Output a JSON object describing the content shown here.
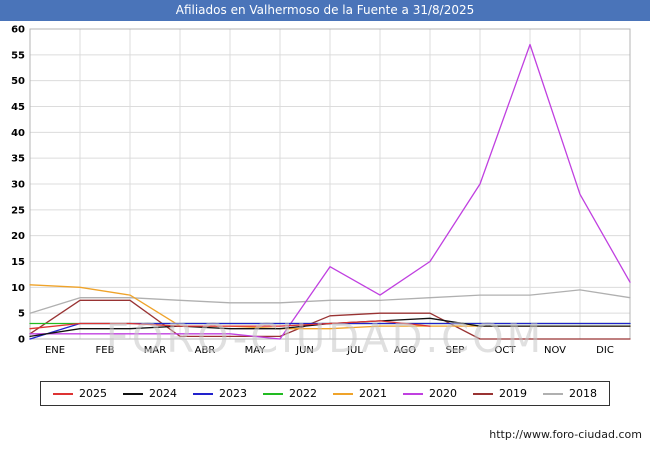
{
  "chart_data": {
    "type": "line",
    "title": "Afiliados en Valhermoso de la Fuente a 31/8/2025",
    "categories": [
      "ENE",
      "FEB",
      "MAR",
      "ABR",
      "MAY",
      "JUN",
      "JUL",
      "AGO",
      "SEP",
      "OCT",
      "NOV",
      "DIC"
    ],
    "ylim": [
      0,
      60
    ],
    "ytick_step": 5,
    "points": 13,
    "grid": true,
    "legend_position": "bottom",
    "series": [
      {
        "name": "2025",
        "color": "#dd3333",
        "values": [
          2,
          3,
          3,
          2.5,
          2.5,
          2.5,
          3,
          3.5,
          2.5,
          null,
          null,
          null,
          null
        ]
      },
      {
        "name": "2024",
        "color": "#111111",
        "values": [
          0.5,
          2,
          2,
          2.5,
          2,
          2,
          3,
          3.5,
          4,
          2.5,
          2.5,
          2.5,
          2.5
        ]
      },
      {
        "name": "2023",
        "color": "#2222cc",
        "values": [
          0,
          3,
          3,
          3,
          3,
          3,
          3,
          3,
          3,
          3,
          3,
          3,
          3
        ]
      },
      {
        "name": "2022",
        "color": "#22bb22",
        "values": [
          3,
          3,
          3,
          3,
          3,
          3,
          3,
          3,
          3,
          3,
          3,
          3,
          3
        ]
      },
      {
        "name": "2021",
        "color": "#efa32a",
        "values": [
          10.5,
          10,
          8.5,
          2.5,
          2.5,
          2,
          2,
          2.5,
          2.5,
          2.5,
          2.5,
          2.5,
          2.5
        ]
      },
      {
        "name": "2020",
        "color": "#c040e0",
        "values": [
          1,
          1,
          1,
          1,
          1,
          0,
          14,
          8.5,
          15,
          30,
          57,
          28,
          11
        ]
      },
      {
        "name": "2019",
        "color": "#993333",
        "values": [
          1,
          7.5,
          7.5,
          0.5,
          0.5,
          0.5,
          4.5,
          5,
          5,
          0,
          0,
          0,
          0
        ]
      },
      {
        "name": "2018",
        "color": "#b0b0b0",
        "values": [
          5,
          8,
          8,
          7.5,
          7,
          7,
          7.5,
          7.5,
          8,
          8.5,
          8.5,
          9.5,
          8
        ]
      }
    ]
  },
  "watermark": {
    "text": "FORO-CIUDAD.COM"
  },
  "footer": {
    "url": "http://www.foro-ciudad.com"
  }
}
